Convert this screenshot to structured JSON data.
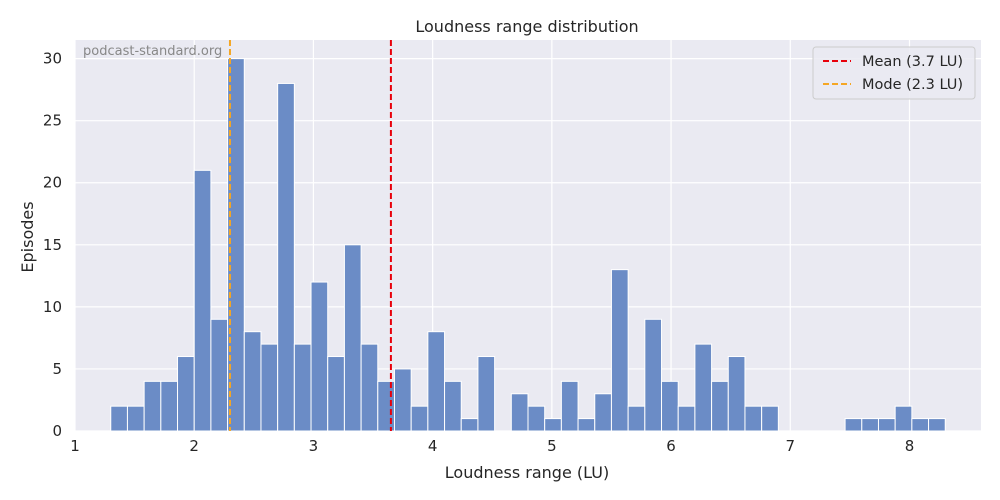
{
  "chart_data": {
    "type": "bar",
    "title": "Loudness range distribution",
    "xlabel": "Loudness range (LU)",
    "ylabel": "Episodes",
    "watermark": "podcast-standard.org",
    "xlim": [
      1.0,
      8.6
    ],
    "ylim": [
      0,
      31.5
    ],
    "bin_width": 0.14,
    "bins_start": [
      1.3,
      1.44,
      1.58,
      1.72,
      1.86,
      2.0,
      2.14,
      2.28,
      2.42,
      2.56,
      2.7,
      2.84,
      2.98,
      3.12,
      3.26,
      3.4,
      3.54,
      3.68,
      3.82,
      3.96,
      4.1,
      4.24,
      4.38,
      4.52,
      4.66,
      4.8,
      4.94,
      5.08,
      5.22,
      5.36,
      5.5,
      5.64,
      5.78,
      5.92,
      6.06,
      6.2,
      6.34,
      6.48,
      6.62,
      6.76,
      6.9,
      7.04,
      7.18,
      7.32,
      7.46,
      7.6,
      7.74,
      7.88,
      8.02,
      8.16
    ],
    "counts": [
      2,
      2,
      4,
      4,
      6,
      21,
      9,
      30,
      8,
      7,
      28,
      7,
      12,
      6,
      15,
      7,
      4,
      5,
      2,
      8,
      4,
      1,
      6,
      0,
      3,
      2,
      1,
      4,
      1,
      3,
      13,
      2,
      9,
      4,
      2,
      7,
      4,
      6,
      2,
      2,
      0,
      0,
      0,
      0,
      1,
      1,
      1,
      2,
      1,
      1
    ],
    "x_ticks": [
      1,
      2,
      3,
      4,
      5,
      6,
      7,
      8
    ],
    "y_ticks": [
      0,
      5,
      10,
      15,
      20,
      25,
      30
    ],
    "bar_color": "#6b8cc6",
    "background": "#eaeaf2",
    "grid": true,
    "reference_lines": [
      {
        "label": "Mean (3.7 LU)",
        "x": 3.65,
        "color": "#e8000b",
        "style": "dashed"
      },
      {
        "label": "Mode (2.3 LU)",
        "x": 2.3,
        "color": "#f5a623",
        "style": "dashed"
      }
    ],
    "legend_position": "top-right"
  }
}
